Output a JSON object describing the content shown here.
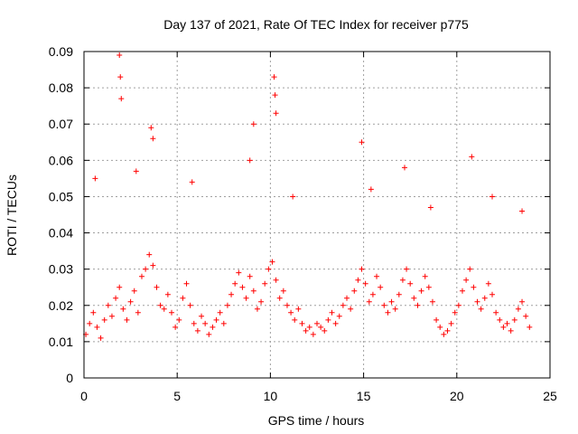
{
  "chart_data": {
    "type": "scatter",
    "title": "Day 137 of 2021, Rate Of TEC Index for receiver p775",
    "xlabel": "GPS time / hours",
    "ylabel": "ROTI / TECUs",
    "xlim": [
      0,
      25
    ],
    "ylim": [
      0,
      0.09
    ],
    "x_ticks": [
      "0",
      "5",
      "10",
      "15",
      "20",
      "25"
    ],
    "y_ticks": [
      "0",
      "0.01",
      "0.02",
      "0.03",
      "0.04",
      "0.05",
      "0.06",
      "0.07",
      "0.08",
      "0.09"
    ],
    "grid": true,
    "marker": "+",
    "series": [
      {
        "name": "ROTI",
        "color": "#ff0000",
        "x": [
          0.1,
          0.3,
          0.5,
          0.7,
          0.9,
          1.1,
          1.3,
          1.5,
          1.7,
          1.9,
          2.1,
          2.3,
          2.5,
          2.7,
          2.9,
          3.1,
          3.3,
          3.5,
          3.7,
          3.9,
          4.1,
          4.3,
          4.5,
          4.7,
          4.9,
          5.1,
          5.3,
          5.5,
          5.7,
          5.9,
          6.1,
          6.3,
          6.5,
          6.7,
          6.9,
          7.1,
          7.3,
          7.5,
          7.7,
          7.9,
          8.1,
          8.3,
          8.5,
          8.7,
          8.9,
          9.1,
          9.3,
          9.5,
          9.7,
          9.9,
          10.1,
          10.3,
          10.5,
          10.7,
          10.9,
          11.1,
          11.3,
          11.5,
          11.7,
          11.9,
          12.1,
          12.3,
          12.5,
          12.7,
          12.9,
          13.1,
          13.3,
          13.5,
          13.7,
          13.9,
          14.1,
          14.3,
          14.5,
          14.7,
          14.9,
          15.1,
          15.3,
          15.5,
          15.7,
          15.9,
          16.1,
          16.3,
          16.5,
          16.7,
          16.9,
          17.1,
          17.3,
          17.5,
          17.7,
          17.9,
          18.1,
          18.3,
          18.5,
          18.7,
          18.9,
          19.1,
          19.3,
          19.5,
          19.7,
          19.9,
          20.1,
          20.3,
          20.5,
          20.7,
          20.9,
          21.1,
          21.3,
          21.5,
          21.7,
          21.9,
          22.1,
          22.3,
          22.5,
          22.7,
          22.9,
          23.1,
          23.3,
          23.5,
          23.7,
          23.9,
          1.9,
          1.95,
          2.0,
          3.6,
          3.7,
          9.1,
          10.2,
          10.25,
          10.3,
          14.9,
          17.2,
          20.8,
          0.6,
          2.8,
          5.8,
          8.9,
          11.2,
          15.4,
          18.6,
          21.9,
          23.5
        ],
        "y": [
          0.012,
          0.015,
          0.018,
          0.014,
          0.011,
          0.016,
          0.02,
          0.017,
          0.022,
          0.025,
          0.019,
          0.016,
          0.021,
          0.024,
          0.018,
          0.028,
          0.03,
          0.034,
          0.031,
          0.025,
          0.02,
          0.019,
          0.023,
          0.018,
          0.014,
          0.016,
          0.022,
          0.026,
          0.02,
          0.015,
          0.013,
          0.017,
          0.015,
          0.012,
          0.014,
          0.016,
          0.018,
          0.015,
          0.02,
          0.023,
          0.026,
          0.029,
          0.025,
          0.022,
          0.028,
          0.024,
          0.019,
          0.021,
          0.026,
          0.03,
          0.032,
          0.027,
          0.022,
          0.024,
          0.02,
          0.018,
          0.016,
          0.019,
          0.015,
          0.013,
          0.014,
          0.012,
          0.015,
          0.014,
          0.013,
          0.016,
          0.018,
          0.015,
          0.017,
          0.02,
          0.022,
          0.019,
          0.024,
          0.027,
          0.03,
          0.026,
          0.021,
          0.023,
          0.028,
          0.025,
          0.02,
          0.018,
          0.021,
          0.019,
          0.023,
          0.027,
          0.03,
          0.026,
          0.022,
          0.02,
          0.024,
          0.028,
          0.025,
          0.021,
          0.016,
          0.014,
          0.012,
          0.013,
          0.015,
          0.018,
          0.02,
          0.024,
          0.027,
          0.03,
          0.025,
          0.021,
          0.019,
          0.022,
          0.026,
          0.023,
          0.018,
          0.016,
          0.014,
          0.015,
          0.013,
          0.016,
          0.019,
          0.021,
          0.017,
          0.014,
          0.089,
          0.083,
          0.077,
          0.069,
          0.066,
          0.07,
          0.083,
          0.078,
          0.073,
          0.065,
          0.058,
          0.061,
          0.055,
          0.057,
          0.054,
          0.06,
          0.05,
          0.052,
          0.047,
          0.05,
          0.046
        ]
      }
    ]
  }
}
